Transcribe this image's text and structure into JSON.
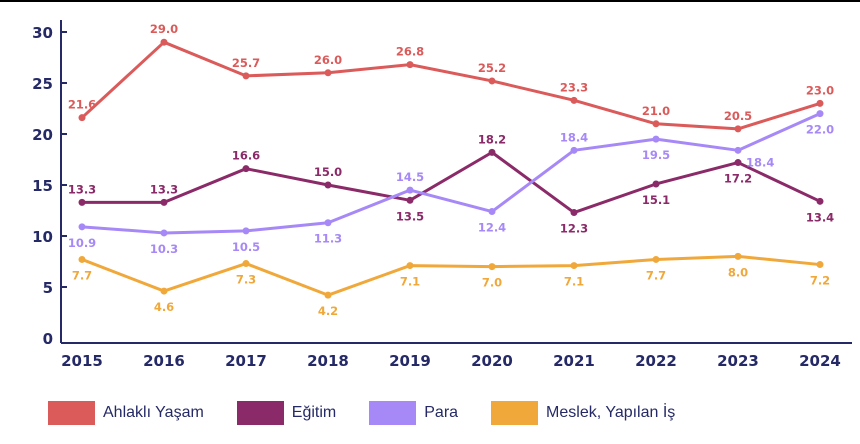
{
  "chart_data": {
    "type": "line",
    "title": "",
    "xlabel": "",
    "ylabel": "",
    "x": [
      "2015",
      "2016",
      "2017",
      "2018",
      "2019",
      "2020",
      "2021",
      "2022",
      "2023",
      "2024"
    ],
    "ylim": [
      0,
      30
    ],
    "yticks": [
      "0",
      "5",
      "10",
      "15",
      "20",
      "25",
      "30"
    ],
    "grid": false,
    "legend_position": "bottom",
    "series": [
      {
        "name": "Ahlaklı Yaşam",
        "color": "#db5a5a",
        "label_pos": "above",
        "values": [
          21.6,
          29.0,
          25.7,
          26.0,
          26.8,
          25.2,
          23.3,
          21.0,
          20.5,
          23.0
        ],
        "labels": [
          "21.6",
          "29.0",
          "25.7",
          "26.0",
          "26.8",
          "25.2",
          "23.3",
          "21.0",
          "20.5",
          "23.0"
        ]
      },
      {
        "name": "Eğitim",
        "color": "#8b2a68",
        "values": [
          13.3,
          13.3,
          16.6,
          15.0,
          13.5,
          18.2,
          12.3,
          15.1,
          17.2,
          13.4
        ],
        "labels": [
          "13.3",
          "13.3",
          "16.6",
          "15.0",
          "13.5",
          "18.2",
          "12.3",
          "15.1",
          "17.2",
          "13.4"
        ],
        "label_positions": [
          "above",
          "above",
          "above",
          "above",
          "below",
          "above",
          "below",
          "below",
          "below",
          "below"
        ]
      },
      {
        "name": "Para",
        "color": "#a689f7",
        "values": [
          10.9,
          10.3,
          10.5,
          11.3,
          14.5,
          12.4,
          18.4,
          19.5,
          18.4,
          22.0
        ],
        "labels": [
          "10.9",
          "10.3",
          "10.5",
          "11.3",
          "14.5",
          "12.4",
          "18.4",
          "19.5",
          "18.4",
          "22.0"
        ],
        "label_positions": [
          "below",
          "below",
          "below",
          "below",
          "above",
          "below",
          "above",
          "below",
          "below-right",
          "below"
        ]
      },
      {
        "name": "Meslek, Yapılan İş",
        "color": "#f0a83a",
        "label_pos": "below",
        "values": [
          7.7,
          4.6,
          7.3,
          4.2,
          7.1,
          7.0,
          7.1,
          7.7,
          8.0,
          7.2
        ],
        "labels": [
          "7.7",
          "4.6",
          "7.3",
          "4.2",
          "7.1",
          "7.0",
          "7.1",
          "7.7",
          "8.0",
          "7.2"
        ]
      }
    ]
  },
  "legend": [
    {
      "label": "Ahlaklı Yaşam",
      "color": "#db5a5a"
    },
    {
      "label": "Eğitim",
      "color": "#8b2a68"
    },
    {
      "label": "Para",
      "color": "#a689f7"
    },
    {
      "label": "Meslek, Yapılan İş",
      "color": "#f0a83a"
    }
  ],
  "axis_color": "#252a66"
}
